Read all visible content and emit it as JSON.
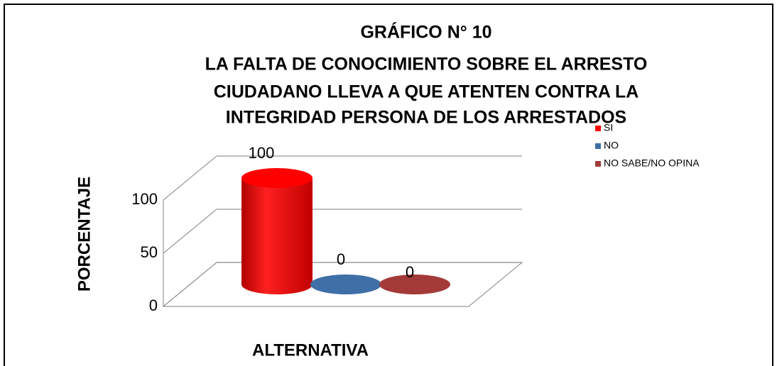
{
  "chart_data": {
    "type": "bar3d",
    "title": [
      "GRÁFICO N° 10",
      "LA FALTA DE CONOCIMIENTO SOBRE EL ARRESTO",
      "CIUDADANO LLEVA A QUE ATENTEN CONTRA LA",
      "INTEGRIDAD PERSONA DE LOS ARRESTADOS"
    ],
    "x_label": "ALTERNATIVA",
    "y_label": "PORCENTAJE",
    "series": [
      {
        "name": "SI",
        "color": "#ff0000",
        "values": [
          100
        ]
      },
      {
        "name": "NO",
        "color": "#3e6fa6",
        "values": [
          0
        ]
      },
      {
        "name": "NO SABE/NO OPINA",
        "color": "#a33a38",
        "values": [
          0
        ]
      }
    ],
    "ylim": [
      0,
      100
    ],
    "yticks": [
      0,
      50,
      100
    ],
    "grid": true,
    "legend": "right"
  }
}
